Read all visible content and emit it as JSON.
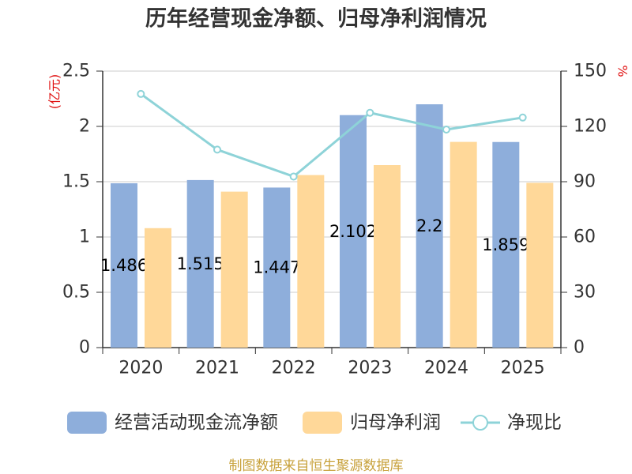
{
  "chart_data": {
    "type": "bar",
    "title": "历年经营现金净额、归母净利润情况",
    "categories": [
      "2020",
      "2021",
      "2022",
      "2023",
      "2024",
      "2025"
    ],
    "series": [
      {
        "name": "经营活动现金流净额",
        "type": "bar",
        "axis": "left",
        "color": "#8eaedb",
        "values": [
          1.486,
          1.515,
          1.447,
          2.102,
          2.2,
          1.859
        ],
        "labels": [
          "1.486",
          "1.515",
          "1.447",
          "2.102",
          "2.2",
          "1.859"
        ]
      },
      {
        "name": "归母净利润",
        "type": "bar",
        "axis": "left",
        "color": "#ffd899",
        "values": [
          1.08,
          1.41,
          1.56,
          1.65,
          1.86,
          1.49
        ]
      },
      {
        "name": "净现比",
        "type": "line",
        "axis": "right",
        "color": "#8ed3d8",
        "values": [
          137.6,
          107.4,
          92.8,
          127.4,
          118.3,
          124.8
        ]
      }
    ],
    "ylabel_left": "(亿元)",
    "ylabel_right": "%",
    "ylim_left": [
      0,
      2.5
    ],
    "ylim_right": [
      0,
      150
    ],
    "yticks_left": [
      "0",
      "0.5",
      "1",
      "1.5",
      "2",
      "2.5"
    ],
    "yticks_right": [
      "0",
      "30",
      "60",
      "90",
      "120",
      "150"
    ],
    "grid": true,
    "legend": "bottom"
  },
  "source": "制图数据来自恒生聚源数据库"
}
